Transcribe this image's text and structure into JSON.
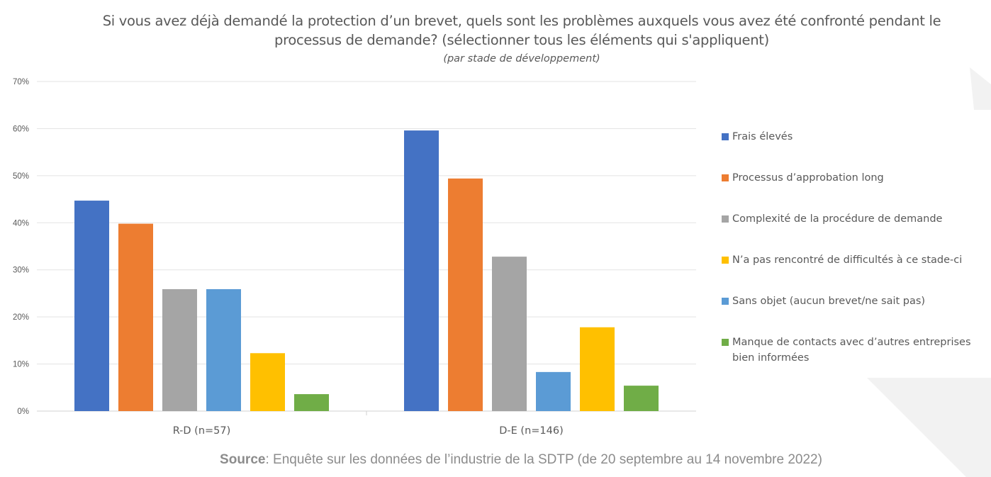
{
  "chart_data": {
    "type": "bar",
    "title": "Si vous avez déjà demandé la protection d’un brevet, quels sont les problèmes auxquels vous avez été confronté pendant le processus de demande? (sélectionner tous les éléments qui s'appliquent)",
    "subtitle": "(par stade de développement)",
    "categories": [
      "R-D (n=57)",
      "D-E (n=146)"
    ],
    "series": [
      {
        "name": "Frais élevés",
        "color": "#4472C4",
        "values": [
          44.7,
          59.6
        ]
      },
      {
        "name": "Processus d’approbation long",
        "color": "#ED7D31",
        "values": [
          39.8,
          49.4
        ]
      },
      {
        "name": "Complexité de la procédure de demande",
        "color": "#A5A5A5",
        "values": [
          25.9,
          32.8
        ]
      },
      {
        "name": "Sans objet (aucun brevet/ne sait pas)",
        "color": "#5B9BD5",
        "values": [
          25.9,
          8.3
        ]
      },
      {
        "name": "N’a pas rencontré de difficultés à ce stade-ci",
        "color": "#FFC000",
        "values": [
          12.3,
          17.8
        ]
      },
      {
        "name": "Manque de contacts avec d’autres entreprises bien informées",
        "color": "#70AD47",
        "values": [
          3.6,
          5.4
        ]
      }
    ],
    "legend_order": [
      0,
      1,
      2,
      4,
      3,
      5
    ],
    "yticks": [
      "0%",
      "10%",
      "20%",
      "30%",
      "40%",
      "50%",
      "60%",
      "70%"
    ],
    "ylim": [
      0,
      70
    ],
    "grid": true,
    "legend_position": "right",
    "xlabel": "",
    "ylabel": ""
  },
  "source": {
    "label": "Source",
    "text": ": Enquête sur les données de l’industrie de la SDTP (de 20 septembre au 14 novembre 2022)"
  }
}
